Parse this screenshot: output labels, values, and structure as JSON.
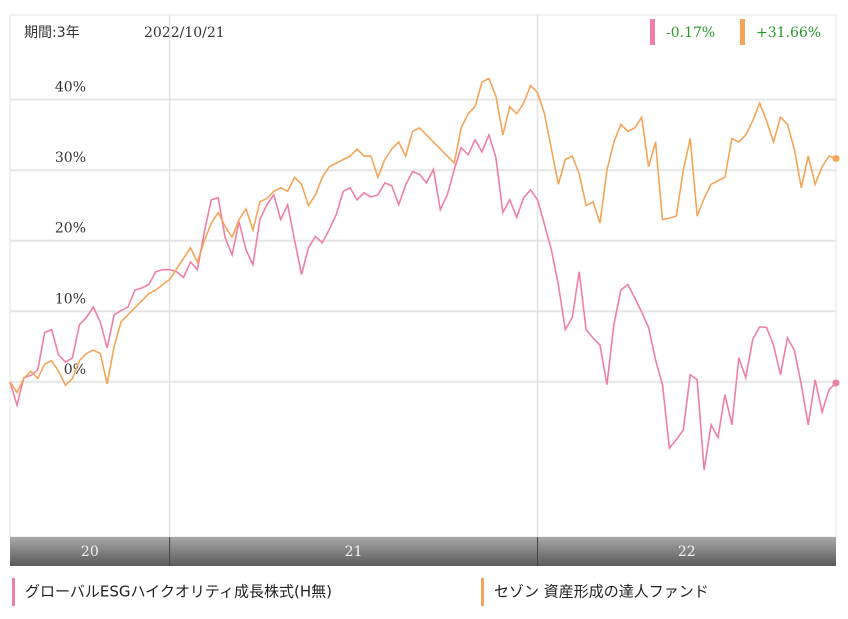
{
  "chart_data": {
    "type": "line",
    "period_label": "期間:3年",
    "date": "2022/10/21",
    "ylim": [
      -22,
      52
    ],
    "yticks": [
      {
        "value": 0,
        "label": "0%"
      },
      {
        "value": 10,
        "label": "10%"
      },
      {
        "value": 20,
        "label": "20%"
      },
      {
        "value": 30,
        "label": "30%"
      },
      {
        "value": 40,
        "label": "40%"
      }
    ],
    "grid": true,
    "year_bands": [
      {
        "label": "20",
        "start": 0
      },
      {
        "label": "21",
        "start": 23
      },
      {
        "label": "22",
        "start": 76
      }
    ],
    "series": [
      {
        "name": "グローバルESGハイクオリティ成長株式(H無)",
        "color": "#f07fa8",
        "last_label": "-0.17%",
        "values": [
          0,
          -3.3,
          0.6,
          0.9,
          1.7,
          7,
          7.4,
          3.8,
          2.8,
          3.4,
          8.1,
          9.1,
          10.6,
          8.5,
          4.8,
          9.5,
          10.1,
          10.6,
          13,
          13.3,
          13.8,
          15.6,
          15.9,
          15.9,
          15.6,
          14.8,
          17,
          15.9,
          21.3,
          25.8,
          26.1,
          20.4,
          18,
          22.7,
          18.7,
          16.6,
          23,
          25.1,
          26.5,
          23,
          25.1,
          20.1,
          15.2,
          19,
          20.6,
          19.7,
          21.6,
          23.7,
          27,
          27.5,
          25.8,
          26.8,
          26.2,
          26.5,
          28.2,
          27.8,
          25.1,
          27.9,
          29.8,
          29.4,
          28.2,
          30.1,
          24.4,
          26.5,
          30.1,
          33.2,
          32.2,
          34.3,
          32.6,
          35,
          31.8,
          24,
          25.8,
          23.3,
          26.1,
          27.2,
          25.8,
          22.3,
          18.7,
          13.8,
          7.4,
          9.1,
          15.6,
          7.4,
          6.2,
          5.2,
          -0.4,
          8.1,
          13,
          13.8,
          11.9,
          9.9,
          7.7,
          3.1,
          -0.4,
          -9.4,
          -8.2,
          -6.8,
          1,
          0.3,
          -12.5,
          -6.1,
          -7.9,
          -1.8,
          -6.1,
          3.4,
          0.6,
          6,
          7.8,
          7.7,
          5.2,
          1,
          6.2,
          4.5,
          -0.4,
          -6.1,
          0.3,
          -4.3,
          -1.1,
          -0.17
        ]
      },
      {
        "name": "セゾン 資産形成の達人ファンド",
        "color": "#f5a55a",
        "last_label": "+31.66%",
        "values": [
          0,
          -1.5,
          0.5,
          1.5,
          0.5,
          2.5,
          3,
          1.5,
          -0.5,
          0.5,
          3,
          4,
          4.5,
          4,
          -0.3,
          5,
          8.5,
          9.5,
          10.5,
          11.5,
          12.5,
          13,
          13.8,
          14.5,
          16,
          17.5,
          19,
          17,
          20,
          22.5,
          24,
          22,
          20.5,
          23,
          24.5,
          21.5,
          25.5,
          26,
          27,
          27.5,
          27,
          29,
          28,
          25,
          26.5,
          29,
          30.5,
          31,
          31.5,
          32,
          33,
          32,
          32,
          29,
          31.5,
          33,
          34,
          32,
          35.5,
          36,
          35,
          34,
          33,
          32,
          31,
          36,
          38,
          39,
          42.5,
          43,
          40.5,
          35,
          39,
          38,
          39.5,
          42,
          41,
          38,
          33,
          28,
          31.5,
          32,
          29.5,
          25,
          25.5,
          22.5,
          30,
          34,
          36.5,
          35.5,
          36,
          37.5,
          30.5,
          34,
          23,
          23.2,
          23.5,
          30,
          34.5,
          23.5,
          26,
          28,
          28.5,
          29,
          34.5,
          34,
          35,
          37,
          39.5,
          37,
          34,
          37.5,
          36.5,
          33,
          27.5,
          32,
          28,
          30.5,
          32,
          31.66
        ]
      }
    ]
  }
}
